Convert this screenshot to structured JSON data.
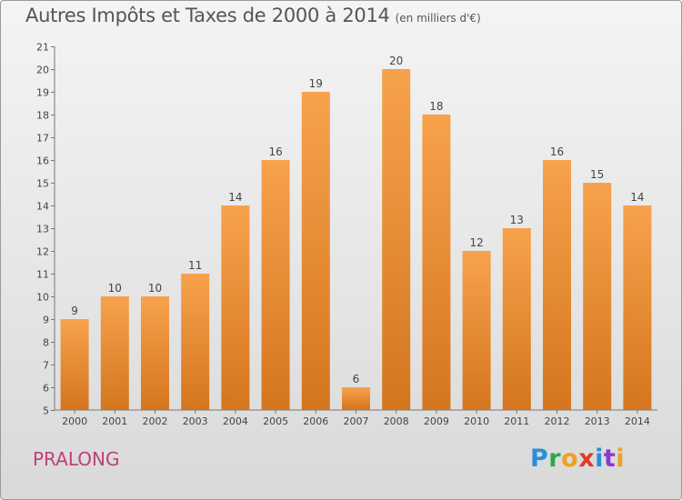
{
  "header": {
    "title": "Autres Impôts et Taxes de 2000 à 2014",
    "unit": "(en milliers d'€)"
  },
  "footer": {
    "commune": "PRALONG",
    "logo": [
      "P",
      "r",
      "o",
      "x",
      "i",
      "t",
      "i"
    ]
  },
  "colors": {
    "bar_top": "#f7a24c",
    "bar_bottom": "#d4761e",
    "commune": "#c0407a"
  },
  "chart_data": {
    "type": "bar",
    "title": "Autres Impôts et Taxes de 2000 à 2014",
    "xlabel": "",
    "ylabel": "",
    "categories": [
      "2000",
      "2001",
      "2002",
      "2003",
      "2004",
      "2005",
      "2006",
      "2007",
      "2008",
      "2009",
      "2010",
      "2011",
      "2012",
      "2013",
      "2014"
    ],
    "values": [
      9,
      10,
      10,
      11,
      14,
      16,
      19,
      6,
      20,
      18,
      12,
      13,
      16,
      15,
      14
    ],
    "ylim": [
      5,
      21
    ],
    "yticks": [
      5,
      6,
      7,
      8,
      9,
      10,
      11,
      12,
      13,
      14,
      15,
      16,
      17,
      18,
      19,
      20,
      21
    ],
    "grid": false,
    "data_labels": true
  }
}
